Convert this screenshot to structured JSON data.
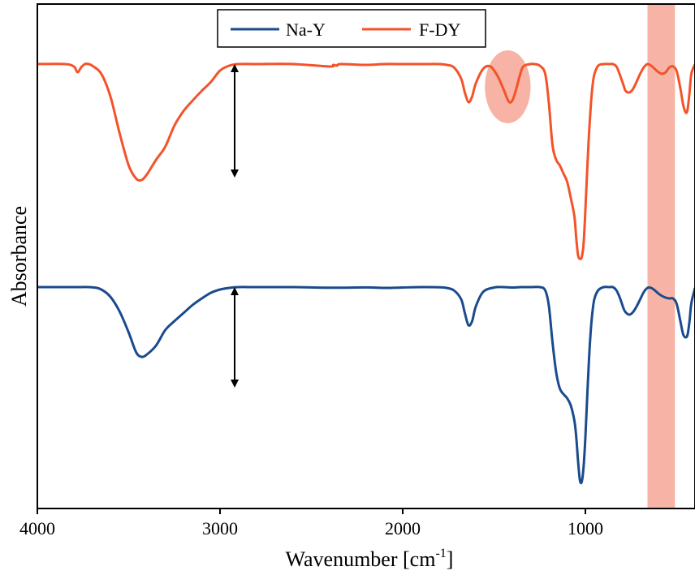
{
  "chart_data": {
    "type": "line",
    "xlabel": "Wavenumber [cm",
    "xlabel_sup": "-1",
    "xlabel_end": "]",
    "ylabel": "Absorbance",
    "xlim": [
      4000,
      400
    ],
    "x_ticks": [
      4000,
      3000,
      2000,
      1000
    ],
    "x_tick_labels": [
      "4000",
      "3000",
      "2000",
      "1000"
    ],
    "x_reversed": true,
    "y_ticks_shown": false,
    "grid": false,
    "legend_position": "top-center",
    "series": [
      {
        "name": "Na-Y",
        "color": "#1a4b8c",
        "baseline": 0,
        "x": [
          4000,
          3800,
          3700,
          3650,
          3600,
          3550,
          3500,
          3460,
          3430,
          3400,
          3350,
          3300,
          3250,
          3200,
          3150,
          3100,
          3050,
          3000,
          2950,
          2900,
          2800,
          2600,
          2400,
          2200,
          2100,
          2000,
          1900,
          1800,
          1760,
          1720,
          1680,
          1660,
          1640,
          1620,
          1600,
          1560,
          1500,
          1450,
          1400,
          1350,
          1300,
          1250,
          1220,
          1200,
          1180,
          1160,
          1140,
          1120,
          1100,
          1080,
          1060,
          1050,
          1040,
          1030,
          1020,
          1010,
          1000,
          990,
          980,
          970,
          960,
          950,
          930,
          900,
          870,
          850,
          830,
          810,
          790,
          780,
          760,
          740,
          720,
          700,
          680,
          660,
          640,
          620,
          600,
          580,
          560,
          540,
          520,
          500,
          480,
          465,
          450,
          440,
          430,
          420,
          400
        ],
        "y": [
          0,
          0,
          -0.2,
          -3,
          -12,
          -30,
          -56,
          -80,
          -86,
          -83,
          -72,
          -53,
          -42,
          -32,
          -22,
          -14,
          -7,
          -3,
          -1,
          0,
          0,
          0,
          -0.8,
          -0.4,
          -1,
          -0.5,
          0,
          -0.2,
          -1,
          -4,
          -15,
          -32,
          -47,
          -42,
          -24,
          -6,
          -0.5,
          0,
          -0.5,
          0,
          0,
          0,
          -4,
          -23,
          -68,
          -105,
          -125,
          -132,
          -137,
          -146,
          -165,
          -185,
          -215,
          -238,
          -240,
          -222,
          -185,
          -135,
          -88,
          -52,
          -28,
          -14,
          -4,
          0,
          0,
          0,
          -4,
          -14,
          -27,
          -31,
          -34,
          -31,
          -24,
          -15,
          -6,
          -1,
          -1,
          -4,
          -8,
          -11,
          -13,
          -14,
          -14,
          -21,
          -42,
          -58,
          -62,
          -58,
          -42,
          -20,
          -1
        ]
      },
      {
        "name": "F-DY",
        "color": "#f4532a",
        "baseline": 0,
        "x": [
          4000,
          3850,
          3800,
          3780,
          3760,
          3740,
          3720,
          3700,
          3650,
          3600,
          3550,
          3500,
          3460,
          3430,
          3400,
          3350,
          3300,
          3250,
          3200,
          3150,
          3100,
          3050,
          3000,
          2950,
          2900,
          2800,
          2600,
          2400,
          2380,
          2360,
          2340,
          2200,
          2100,
          2000,
          1900,
          1800,
          1760,
          1720,
          1680,
          1660,
          1640,
          1620,
          1600,
          1560,
          1520,
          1480,
          1450,
          1420,
          1400,
          1380,
          1360,
          1340,
          1300,
          1280,
          1250,
          1220,
          1200,
          1180,
          1160,
          1140,
          1120,
          1100,
          1080,
          1060,
          1050,
          1040,
          1030,
          1020,
          1010,
          1000,
          990,
          980,
          970,
          960,
          950,
          930,
          900,
          870,
          850,
          830,
          810,
          790,
          780,
          760,
          740,
          720,
          700,
          680,
          660,
          640,
          620,
          600,
          580,
          560,
          540,
          520,
          500,
          480,
          465,
          450,
          440,
          430,
          420,
          400
        ],
        "y": [
          0,
          0,
          -3,
          -10,
          -4,
          0,
          0,
          -2,
          -12,
          -40,
          -85,
          -125,
          -141,
          -143,
          -136,
          -118,
          -102,
          -76,
          -58,
          -45,
          -33,
          -22,
          -8,
          -2,
          0,
          0,
          0,
          -3,
          -1,
          -2,
          0,
          -1,
          0,
          0,
          0,
          0,
          -1,
          -4,
          -18,
          -35,
          -47,
          -40,
          -24,
          -6,
          -3,
          -15,
          -30,
          -46,
          -45,
          -32,
          -15,
          -3,
          0,
          0,
          -2,
          -12,
          -48,
          -100,
          -118,
          -125,
          -135,
          -145,
          -165,
          -188,
          -215,
          -236,
          -240,
          -238,
          -222,
          -180,
          -130,
          -85,
          -50,
          -25,
          -12,
          -2,
          0,
          0,
          0,
          -3,
          -14,
          -27,
          -33,
          -35,
          -31,
          -22,
          -12,
          -4,
          0,
          -2,
          -6,
          -10,
          -12,
          -10,
          -4,
          -3,
          -9,
          -30,
          -50,
          -60,
          -55,
          -35,
          -12,
          0
        ]
      }
    ],
    "annotations": {
      "double_arrows": [
        {
          "x": 2920,
          "series": "F-DY",
          "from": 0,
          "to": -140
        },
        {
          "x": 2920,
          "series": "Na-Y",
          "from": 0,
          "to": -124
        }
      ],
      "highlight_band": {
        "x_from": 660,
        "x_to": 510,
        "color": "#f7b3a5"
      },
      "highlight_ellipse": {
        "x_center": 1425,
        "y_center": -28,
        "x_radius": 125,
        "y_radius": 45,
        "series": "F-DY",
        "color": "#f7b3a5"
      }
    }
  }
}
